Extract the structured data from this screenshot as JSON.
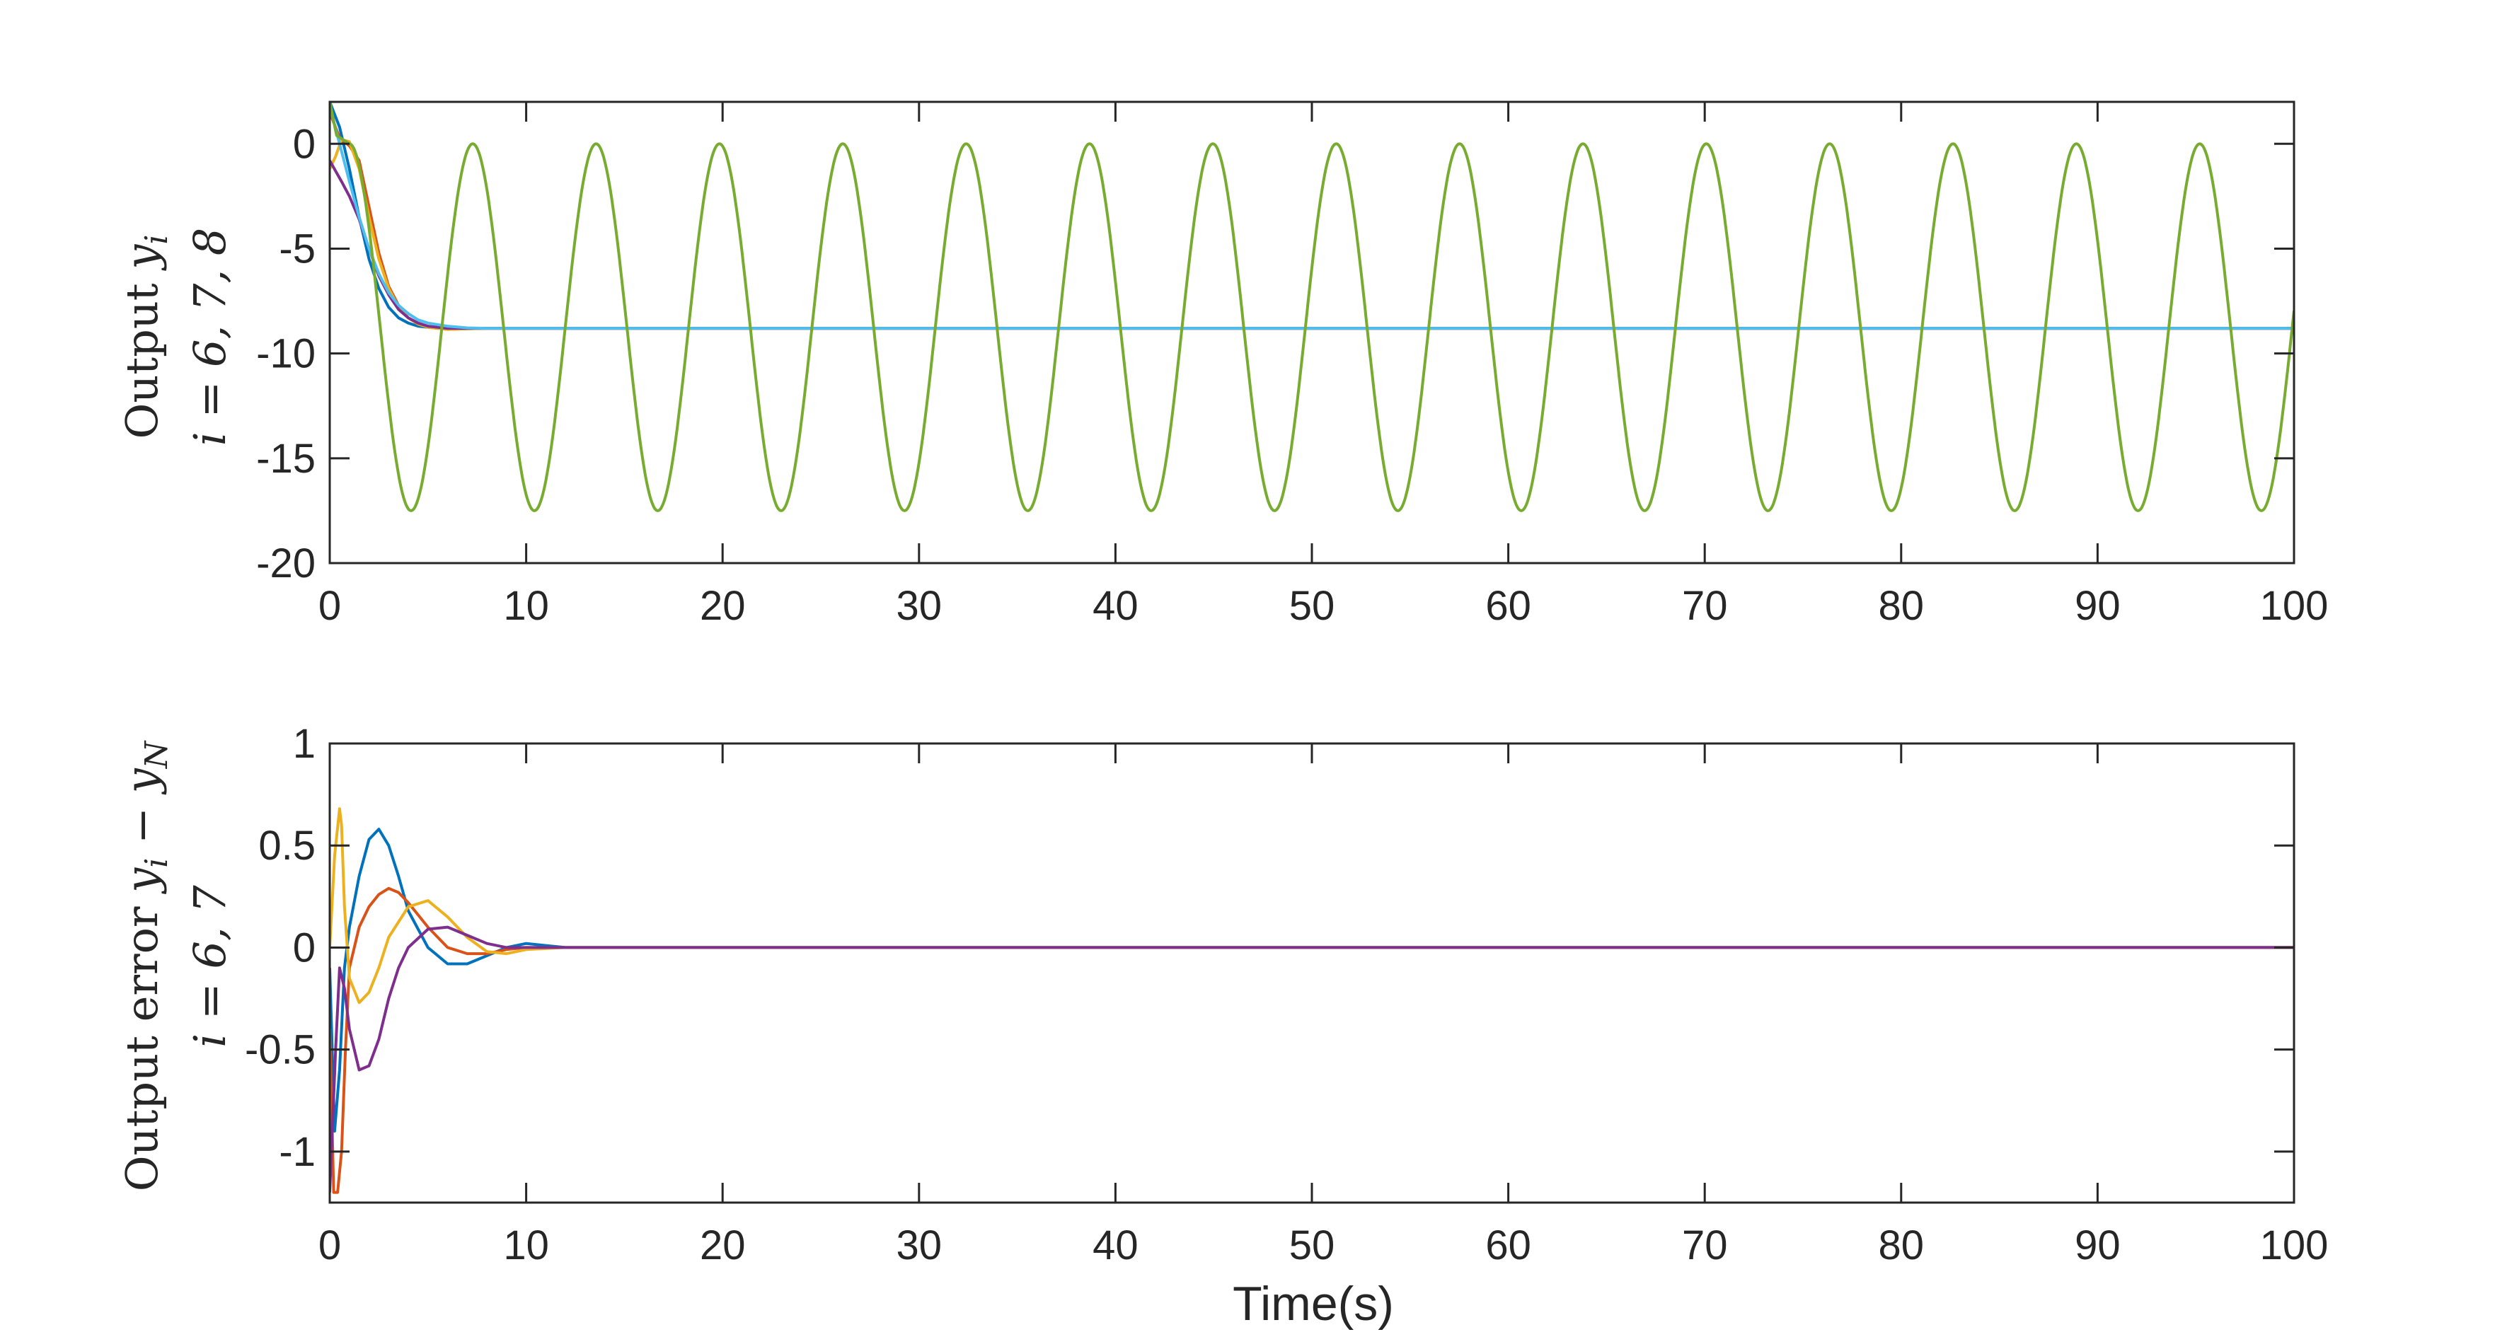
{
  "chart_data": [
    {
      "type": "line",
      "ylabel": {
        "line1_text": "Output ",
        "line1_symbol": "y",
        "line1_sub": "i",
        "line2": "i = 6, 7, 8"
      },
      "xlim": [
        0,
        100
      ],
      "ylim": [
        -20,
        2
      ],
      "xticks": [
        0,
        10,
        20,
        30,
        40,
        50,
        60,
        70,
        80,
        90,
        100
      ],
      "yticks": [
        0,
        -5,
        -10,
        -15,
        -20
      ],
      "ytick_labels": [
        "0",
        "-5",
        "-10",
        "-15",
        "-20"
      ],
      "grid": false,
      "series": [
        {
          "color": "#0072BD",
          "x": [
            0,
            0.5,
            1,
            1.5,
            2,
            2.5,
            3,
            3.5,
            4,
            4.5,
            5,
            6,
            7,
            8,
            9,
            10,
            15,
            100
          ],
          "y": [
            2,
            0.8,
            -1.2,
            -3.5,
            -5.5,
            -6.9,
            -7.8,
            -8.3,
            -8.55,
            -8.7,
            -8.75,
            -8.8,
            -8.8,
            -8.8,
            -8.8,
            -8.8,
            -8.8,
            -8.8
          ]
        },
        {
          "color": "#D95319",
          "x": [
            0,
            0.5,
            1,
            1.5,
            2,
            2.5,
            3,
            3.5,
            4,
            4.5,
            5,
            6,
            7,
            8,
            9,
            10,
            15,
            100
          ],
          "y": [
            1.5,
            0.3,
            -0.1,
            -0.8,
            -3.0,
            -5.2,
            -6.8,
            -7.7,
            -8.3,
            -8.6,
            -8.75,
            -8.85,
            -8.82,
            -8.8,
            -8.8,
            -8.8,
            -8.8,
            -8.8
          ]
        },
        {
          "color": "#EDB120",
          "x": [
            0,
            0.3,
            0.6,
            1,
            1.5,
            2,
            2.5,
            3,
            3.5,
            4,
            4.5,
            5,
            6,
            7,
            8,
            9,
            10,
            15,
            100
          ],
          "y": [
            -1.2,
            -0.6,
            0.2,
            0.1,
            -1.2,
            -3.5,
            -5.5,
            -6.9,
            -7.8,
            -8.3,
            -8.6,
            -8.75,
            -8.85,
            -8.82,
            -8.8,
            -8.8,
            -8.8,
            -8.8,
            -8.8
          ]
        },
        {
          "color": "#7E2F8E",
          "x": [
            0,
            0.3,
            0.6,
            1,
            1.5,
            2,
            2.5,
            3,
            3.5,
            4,
            4.5,
            5,
            6,
            7,
            8,
            9,
            10,
            15,
            100
          ],
          "y": [
            -0.8,
            -1.3,
            -1.8,
            -2.5,
            -3.6,
            -5.0,
            -6.3,
            -7.2,
            -7.9,
            -8.3,
            -8.55,
            -8.7,
            -8.8,
            -8.8,
            -8.8,
            -8.8,
            -8.8,
            -8.8,
            -8.8
          ]
        },
        {
          "color": "#4DBEEE",
          "x": [
            0,
            0.5,
            1,
            1.5,
            2,
            2.5,
            3,
            3.5,
            4,
            4.5,
            5,
            6,
            7,
            8,
            9,
            10,
            15,
            100
          ],
          "y": [
            1.8,
            0,
            -1.8,
            -3.5,
            -5.0,
            -6.2,
            -7.1,
            -7.7,
            -8.1,
            -8.4,
            -8.55,
            -8.7,
            -8.78,
            -8.8,
            -8.8,
            -8.8,
            -8.8,
            -8.8
          ]
        },
        {
          "color": "#77AC30",
          "sine": {
            "amplitude": 8.75,
            "offset": -8.75,
            "period": 6.28,
            "peak_at": 1.0,
            "start": 0.35
          }
        }
      ]
    },
    {
      "type": "line",
      "xlabel": "Time(s)",
      "ylabel": {
        "line1_text": "Output error ",
        "line1_symbol": "y",
        "line1_sub": "i",
        "line1_minus": " − ",
        "line1_symbol2": "y",
        "line1_sub2": "N",
        "line2": "i = 6, 7"
      },
      "xlim": [
        0,
        100
      ],
      "ylim": [
        -1.25,
        1
      ],
      "xticks": [
        0,
        10,
        20,
        30,
        40,
        50,
        60,
        70,
        80,
        90,
        100
      ],
      "yticks": [
        1,
        0.5,
        0,
        -0.5,
        -1
      ],
      "ytick_labels": [
        "1",
        "0.5",
        "0",
        "-0.5",
        "-1"
      ],
      "grid": false,
      "series": [
        {
          "color": "#0072BD",
          "x": [
            0,
            0.25,
            0.5,
            0.75,
            1,
            1.5,
            2,
            2.5,
            3,
            3.5,
            4,
            5,
            6,
            7,
            8,
            9,
            10,
            11,
            12,
            14,
            100
          ],
          "y": [
            -0.1,
            -0.9,
            -0.6,
            -0.1,
            0.1,
            0.35,
            0.53,
            0.58,
            0.5,
            0.35,
            0.18,
            0.0,
            -0.08,
            -0.08,
            -0.04,
            0.0,
            0.02,
            0.01,
            0.0,
            0.0,
            0.0
          ]
        },
        {
          "color": "#D95319",
          "x": [
            0,
            0.2,
            0.4,
            0.6,
            0.8,
            1,
            1.5,
            2,
            2.5,
            3,
            3.5,
            4,
            5,
            6,
            7,
            8,
            9,
            10,
            12,
            14,
            100
          ],
          "y": [
            -0.4,
            -1.2,
            -1.2,
            -1.0,
            -0.5,
            -0.1,
            0.1,
            0.2,
            0.26,
            0.29,
            0.27,
            0.22,
            0.1,
            0.0,
            -0.03,
            -0.03,
            -0.01,
            0.0,
            0.0,
            0.0,
            0.0
          ]
        },
        {
          "color": "#EDB120",
          "x": [
            0,
            0.25,
            0.5,
            0.6,
            0.75,
            1,
            1.5,
            2,
            2.5,
            3,
            4,
            5,
            6,
            7,
            8,
            9,
            10,
            12,
            14,
            100
          ],
          "y": [
            0.0,
            0.45,
            0.68,
            0.6,
            0.2,
            -0.15,
            -0.27,
            -0.22,
            -0.1,
            0.05,
            0.2,
            0.23,
            0.15,
            0.05,
            -0.02,
            -0.03,
            -0.01,
            0.0,
            0.0,
            0.0
          ]
        },
        {
          "color": "#7E2F8E",
          "x": [
            0,
            0.3,
            0.5,
            0.75,
            1,
            1.5,
            2,
            2.5,
            3,
            3.5,
            4,
            5,
            6,
            7,
            8,
            9,
            10,
            12,
            14,
            100
          ],
          "y": [
            -1.2,
            -0.5,
            -0.1,
            -0.2,
            -0.4,
            -0.6,
            -0.58,
            -0.45,
            -0.25,
            -0.1,
            0.0,
            0.09,
            0.1,
            0.06,
            0.02,
            0.0,
            0.0,
            0.0,
            0.0,
            0.0
          ]
        }
      ]
    }
  ]
}
